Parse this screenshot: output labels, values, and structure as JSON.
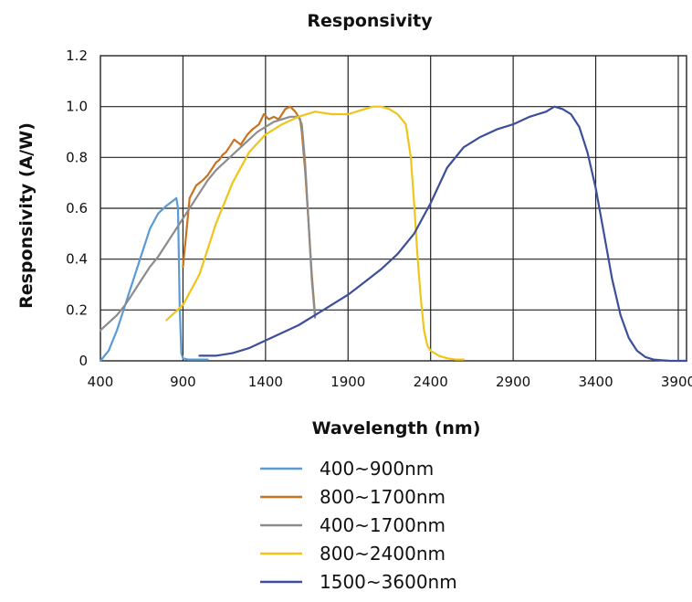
{
  "chart_data": {
    "type": "line",
    "title": "Responsivity",
    "xlabel": "Wavelength (nm)",
    "ylabel": "Responsivity (A/W)",
    "xlim": [
      400,
      3950
    ],
    "ylim": [
      0,
      1.2
    ],
    "xticks": [
      400,
      900,
      1400,
      1900,
      2400,
      2900,
      3400,
      3900
    ],
    "xtick_labels": [
      "400",
      "900",
      "1400",
      "1900",
      "2400",
      "2900",
      "3400",
      "3900"
    ],
    "yticks": [
      0,
      0.2,
      0.4,
      0.6,
      0.8,
      1.0,
      1.2
    ],
    "ytick_labels": [
      "0",
      "0.2",
      "0.4",
      "0.6",
      "0.8",
      "1.0",
      "1.2"
    ],
    "grid": true,
    "legend": "bottom-center",
    "series": [
      {
        "name": "400~900nm",
        "color": "#5b9bd5",
        "x": [
          400,
          450,
          500,
          550,
          600,
          650,
          700,
          750,
          800,
          840,
          860,
          870,
          880,
          890,
          900,
          930,
          980,
          1050
        ],
        "y": [
          0.0,
          0.04,
          0.12,
          0.22,
          0.32,
          0.42,
          0.52,
          0.58,
          0.61,
          0.63,
          0.64,
          0.6,
          0.22,
          0.03,
          0.01,
          0.005,
          0.005,
          0.005
        ]
      },
      {
        "name": "800~1700nm",
        "color": "#c8741f",
        "x": [
          900,
          920,
          940,
          980,
          1020,
          1050,
          1080,
          1100,
          1120,
          1140,
          1160,
          1180,
          1210,
          1250,
          1290,
          1320,
          1360,
          1390,
          1420,
          1450,
          1480,
          1520,
          1550,
          1580,
          1610,
          1620,
          1640,
          1660,
          1680,
          1700
        ],
        "y": [
          0.37,
          0.5,
          0.64,
          0.69,
          0.71,
          0.73,
          0.76,
          0.78,
          0.79,
          0.81,
          0.82,
          0.84,
          0.87,
          0.85,
          0.89,
          0.91,
          0.93,
          0.97,
          0.95,
          0.96,
          0.95,
          0.99,
          1.0,
          0.98,
          0.95,
          0.9,
          0.75,
          0.55,
          0.34,
          0.18
        ]
      },
      {
        "name": "400~1700nm",
        "color": "#8c8c8c",
        "x": [
          400,
          450,
          500,
          550,
          600,
          650,
          700,
          750,
          800,
          850,
          900,
          950,
          1000,
          1050,
          1100,
          1150,
          1200,
          1250,
          1300,
          1350,
          1400,
          1450,
          1500,
          1550,
          1600,
          1620,
          1640,
          1660,
          1680,
          1700
        ],
        "y": [
          0.12,
          0.15,
          0.18,
          0.22,
          0.27,
          0.32,
          0.37,
          0.41,
          0.46,
          0.51,
          0.56,
          0.61,
          0.66,
          0.71,
          0.75,
          0.78,
          0.81,
          0.84,
          0.87,
          0.9,
          0.92,
          0.94,
          0.95,
          0.96,
          0.96,
          0.93,
          0.78,
          0.55,
          0.32,
          0.17
        ]
      },
      {
        "name": "800~2400nm",
        "color": "#f0c419",
        "x": [
          800,
          850,
          900,
          1000,
          1100,
          1200,
          1300,
          1400,
          1500,
          1600,
          1700,
          1800,
          1900,
          2000,
          2050,
          2100,
          2150,
          2200,
          2250,
          2280,
          2300,
          2320,
          2340,
          2360,
          2380,
          2400,
          2450,
          2500,
          2550,
          2600
        ],
        "y": [
          0.16,
          0.19,
          0.22,
          0.34,
          0.54,
          0.7,
          0.82,
          0.89,
          0.93,
          0.96,
          0.98,
          0.97,
          0.97,
          0.99,
          1.0,
          1.0,
          0.99,
          0.97,
          0.93,
          0.8,
          0.62,
          0.42,
          0.25,
          0.12,
          0.06,
          0.04,
          0.02,
          0.01,
          0.005,
          0.005
        ]
      },
      {
        "name": "1500~3600nm",
        "color": "#3b4f9a",
        "x": [
          1000,
          1100,
          1200,
          1300,
          1400,
          1500,
          1600,
          1700,
          1800,
          1900,
          2000,
          2100,
          2200,
          2300,
          2400,
          2500,
          2600,
          2700,
          2800,
          2900,
          3000,
          3100,
          3150,
          3200,
          3250,
          3300,
          3350,
          3400,
          3450,
          3500,
          3550,
          3600,
          3650,
          3700,
          3750,
          3800,
          3850,
          3950
        ],
        "y": [
          0.02,
          0.02,
          0.03,
          0.05,
          0.08,
          0.11,
          0.14,
          0.18,
          0.22,
          0.26,
          0.31,
          0.36,
          0.42,
          0.5,
          0.62,
          0.76,
          0.84,
          0.88,
          0.91,
          0.93,
          0.96,
          0.98,
          1.0,
          0.99,
          0.97,
          0.92,
          0.82,
          0.68,
          0.5,
          0.32,
          0.18,
          0.09,
          0.04,
          0.015,
          0.005,
          0.002,
          0.0,
          0.0
        ]
      }
    ]
  }
}
